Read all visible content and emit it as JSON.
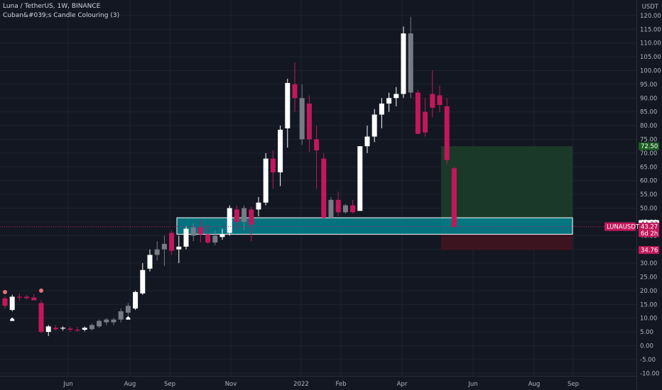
{
  "legend": {
    "symbol_line": "Luna / TetherUS, 1W, BINANCE",
    "indicator_line": "Cuban&#039;s Candle Colouring (3)"
  },
  "chart_data": {
    "type": "candlestick",
    "symbol": "LUNAUSDT",
    "currency": "USDT",
    "y_ticks": [
      120,
      115,
      110,
      105,
      100,
      95,
      90,
      85,
      80,
      75,
      70,
      65,
      60,
      55,
      50,
      45,
      40,
      35,
      30,
      25,
      20,
      15,
      10,
      5,
      0,
      -5,
      -10
    ],
    "ylim": [
      -12,
      125
    ],
    "x_ticks": [
      "Jun",
      "Aug",
      "Sep",
      "Nov",
      "2022",
      "Feb",
      "Apr",
      "Jun",
      "Aug",
      "Sep"
    ],
    "grid": true,
    "candles": [
      {
        "o": 17.2,
        "h": 18.0,
        "l": 13.5,
        "c": 14.5,
        "col": "bear_red"
      },
      {
        "o": 13.0,
        "h": 18.5,
        "l": 12.5,
        "c": 17.8,
        "col": "bull_white"
      },
      {
        "o": 17.5,
        "h": 19.0,
        "l": 16.5,
        "c": 17.8,
        "col": "bear_red"
      },
      {
        "o": 17.8,
        "h": 18.5,
        "l": 16.8,
        "c": 17.3,
        "col": "bear_red"
      },
      {
        "o": 17.5,
        "h": 18.8,
        "l": 16.5,
        "c": 16.5,
        "col": "bear_red"
      },
      {
        "o": 15.5,
        "h": 16.5,
        "l": 4.5,
        "c": 5.0,
        "col": "bear_red"
      },
      {
        "o": 5.0,
        "h": 7.5,
        "l": 3.5,
        "c": 7.0,
        "col": "bull_white"
      },
      {
        "o": 6.5,
        "h": 7.5,
        "l": 5.5,
        "c": 6.0,
        "col": "bear_red"
      },
      {
        "o": 6.2,
        "h": 7.0,
        "l": 5.5,
        "c": 6.5,
        "col": "bull_white"
      },
      {
        "o": 6.2,
        "h": 7.0,
        "l": 5.0,
        "c": 5.8,
        "col": "bear_red"
      },
      {
        "o": 5.5,
        "h": 6.8,
        "l": 5.0,
        "c": 5.8,
        "col": "bear_red"
      },
      {
        "o": 5.8,
        "h": 7.0,
        "l": 5.2,
        "c": 6.5,
        "col": "bull_white"
      },
      {
        "o": 6.0,
        "h": 8.0,
        "l": 5.5,
        "c": 7.5,
        "col": "bull_gray"
      },
      {
        "o": 7.0,
        "h": 9.5,
        "l": 6.5,
        "c": 9.0,
        "col": "bull_gray"
      },
      {
        "o": 8.5,
        "h": 10.0,
        "l": 7.5,
        "c": 9.5,
        "col": "bull_gray"
      },
      {
        "o": 8.5,
        "h": 10.0,
        "l": 7.5,
        "c": 9.5,
        "col": "bull_gray"
      },
      {
        "o": 9.5,
        "h": 13.5,
        "l": 8.5,
        "c": 12.5,
        "col": "bull_gray"
      },
      {
        "o": 12.0,
        "h": 15.5,
        "l": 11.0,
        "c": 14.5,
        "col": "bull_gray"
      },
      {
        "o": 13.5,
        "h": 20.0,
        "l": 13.0,
        "c": 19.5,
        "col": "bull_white"
      },
      {
        "o": 19.0,
        "h": 30.0,
        "l": 18.5,
        "c": 27.5,
        "col": "bull_white"
      },
      {
        "o": 28.0,
        "h": 35.0,
        "l": 27.0,
        "c": 33.0,
        "col": "bull_white"
      },
      {
        "o": 33.0,
        "h": 38.0,
        "l": 31.0,
        "c": 35.0,
        "col": "bull_gray"
      },
      {
        "o": 35.0,
        "h": 40.0,
        "l": 29.0,
        "c": 37.0,
        "col": "bull_gray"
      },
      {
        "o": 34.5,
        "h": 42.0,
        "l": 33.0,
        "c": 41.0,
        "col": "bear_red"
      },
      {
        "o": 35.0,
        "h": 40.0,
        "l": 30.0,
        "c": 36.0,
        "col": "bull_white"
      },
      {
        "o": 36.0,
        "h": 43.5,
        "l": 35.0,
        "c": 42.5,
        "col": "bull_white"
      },
      {
        "o": 40.0,
        "h": 44.5,
        "l": 38.0,
        "c": 43.0,
        "col": "bull_gray"
      },
      {
        "o": 43.0,
        "h": 46.0,
        "l": 37.5,
        "c": 40.5,
        "col": "bear_red"
      },
      {
        "o": 40.5,
        "h": 44.0,
        "l": 37.0,
        "c": 37.5,
        "col": "bear_red"
      },
      {
        "o": 37.5,
        "h": 42.0,
        "l": 36.5,
        "c": 40.0,
        "col": "bull_gray"
      },
      {
        "o": 39.5,
        "h": 42.5,
        "l": 38.5,
        "c": 40.5,
        "col": "bull_white"
      },
      {
        "o": 41.0,
        "h": 51.0,
        "l": 40.0,
        "c": 50.0,
        "col": "bull_white"
      },
      {
        "o": 49.5,
        "h": 51.0,
        "l": 42.0,
        "c": 45.0,
        "col": "bear_red"
      },
      {
        "o": 45.0,
        "h": 51.0,
        "l": 42.0,
        "c": 50.0,
        "col": "bull_gray"
      },
      {
        "o": 49.5,
        "h": 50.5,
        "l": 38.0,
        "c": 44.0,
        "col": "bear_red"
      },
      {
        "o": 49.5,
        "h": 54.0,
        "l": 47.0,
        "c": 52.0,
        "col": "bull_white"
      },
      {
        "o": 52.0,
        "h": 70.0,
        "l": 51.0,
        "c": 68.0,
        "col": "bull_white"
      },
      {
        "o": 68.0,
        "h": 71.0,
        "l": 57.0,
        "c": 63.0,
        "col": "bear_red"
      },
      {
        "o": 63.0,
        "h": 80.0,
        "l": 58.0,
        "c": 78.5,
        "col": "bull_white"
      },
      {
        "o": 79.0,
        "h": 97.0,
        "l": 72.0,
        "c": 95.5,
        "col": "bull_white"
      },
      {
        "o": 95.0,
        "h": 103.0,
        "l": 85.0,
        "c": 90.0,
        "col": "bear_red"
      },
      {
        "o": 90.0,
        "h": 95.0,
        "l": 73.0,
        "c": 75.0,
        "col": "bull_gray"
      },
      {
        "o": 88.0,
        "h": 91.0,
        "l": 70.5,
        "c": 75.0,
        "col": "bear_red"
      },
      {
        "o": 75.0,
        "h": 80.0,
        "l": 57.0,
        "c": 71.0,
        "col": "bear_red"
      },
      {
        "o": 68.0,
        "h": 70.0,
        "l": 46.0,
        "c": 46.5,
        "col": "bear_red"
      },
      {
        "o": 46.5,
        "h": 54.0,
        "l": 46.0,
        "c": 53.0,
        "col": "bull_gray"
      },
      {
        "o": 53.0,
        "h": 56.0,
        "l": 47.0,
        "c": 48.5,
        "col": "bear_red"
      },
      {
        "o": 48.5,
        "h": 51.5,
        "l": 48.0,
        "c": 51.0,
        "col": "bull_gray"
      },
      {
        "o": 51.0,
        "h": 53.0,
        "l": 48.0,
        "c": 48.5,
        "col": "bear_red"
      },
      {
        "o": 49.0,
        "h": 72.5,
        "l": 49.0,
        "c": 72.5,
        "col": "bull_white"
      },
      {
        "o": 72.5,
        "h": 80.0,
        "l": 70.0,
        "c": 76.0,
        "col": "bull_white"
      },
      {
        "o": 76.0,
        "h": 86.0,
        "l": 74.0,
        "c": 84.0,
        "col": "bull_white"
      },
      {
        "o": 84.0,
        "h": 90.0,
        "l": 79.0,
        "c": 88.0,
        "col": "bull_white"
      },
      {
        "o": 88.0,
        "h": 92.0,
        "l": 85.0,
        "c": 90.0,
        "col": "bull_white"
      },
      {
        "o": 90.0,
        "h": 94.0,
        "l": 87.0,
        "c": 91.5,
        "col": "bull_white"
      },
      {
        "o": 91.5,
        "h": 116.0,
        "l": 90.0,
        "c": 113.5,
        "col": "bull_white"
      },
      {
        "o": 113.5,
        "h": 119.5,
        "l": 90.0,
        "c": 92.0,
        "col": "bull_gray"
      },
      {
        "o": 92.0,
        "h": 93.0,
        "l": 77.0,
        "c": 77.0,
        "col": "bear_red"
      },
      {
        "o": 85.0,
        "h": 90.0,
        "l": 76.0,
        "c": 77.5,
        "col": "bear_red"
      },
      {
        "o": 91.5,
        "h": 100.0,
        "l": 83.0,
        "c": 86.5,
        "col": "bear_red"
      },
      {
        "o": 91.0,
        "h": 94.5,
        "l": 85.0,
        "c": 87.5,
        "col": "bear_red"
      },
      {
        "o": 87.0,
        "h": 90.0,
        "l": 66.0,
        "c": 67.5,
        "col": "bear_red"
      },
      {
        "o": 64.5,
        "h": 65.0,
        "l": 42.5,
        "c": 43.3,
        "col": "bear_red"
      }
    ],
    "signals": [
      {
        "candle": 0,
        "type": "sell",
        "y": 19.5
      },
      {
        "candle": 1,
        "type": "buy",
        "y": 9.5
      },
      {
        "candle": 5,
        "type": "sell",
        "y": 20.0
      },
      {
        "candle": 17,
        "type": "buy",
        "y": 10.0
      }
    ],
    "zone_box": {
      "y_top": 46.5,
      "y_bottom": 40.5
    },
    "position": {
      "entry": 43.27,
      "target": 72.5,
      "stop": 34.76
    },
    "price_tags": [
      {
        "label": "72.50",
        "y": 72.5,
        "style": "green"
      },
      {
        "label": "44.23",
        "y": 44.23,
        "style": "gray"
      },
      {
        "label": "43.27",
        "y": 43.27,
        "style": "red"
      },
      {
        "label": "6d 2h",
        "y": 40.9,
        "style": "red"
      },
      {
        "label": "34.76",
        "y": 34.76,
        "style": "red"
      }
    ],
    "symbol_tag": "LUNAUSDT",
    "colors": {
      "bull_white": "#ffffff",
      "bull_gray": "#787b86",
      "bear_red": "#c2185b",
      "tag_red": "#c2185b",
      "tag_green": "#1b5e20",
      "zone": "#00838f",
      "target_zone": "#1b3b29",
      "stop_zone": "#3e1420",
      "background": "#131722",
      "grid": "#1f2330"
    }
  }
}
